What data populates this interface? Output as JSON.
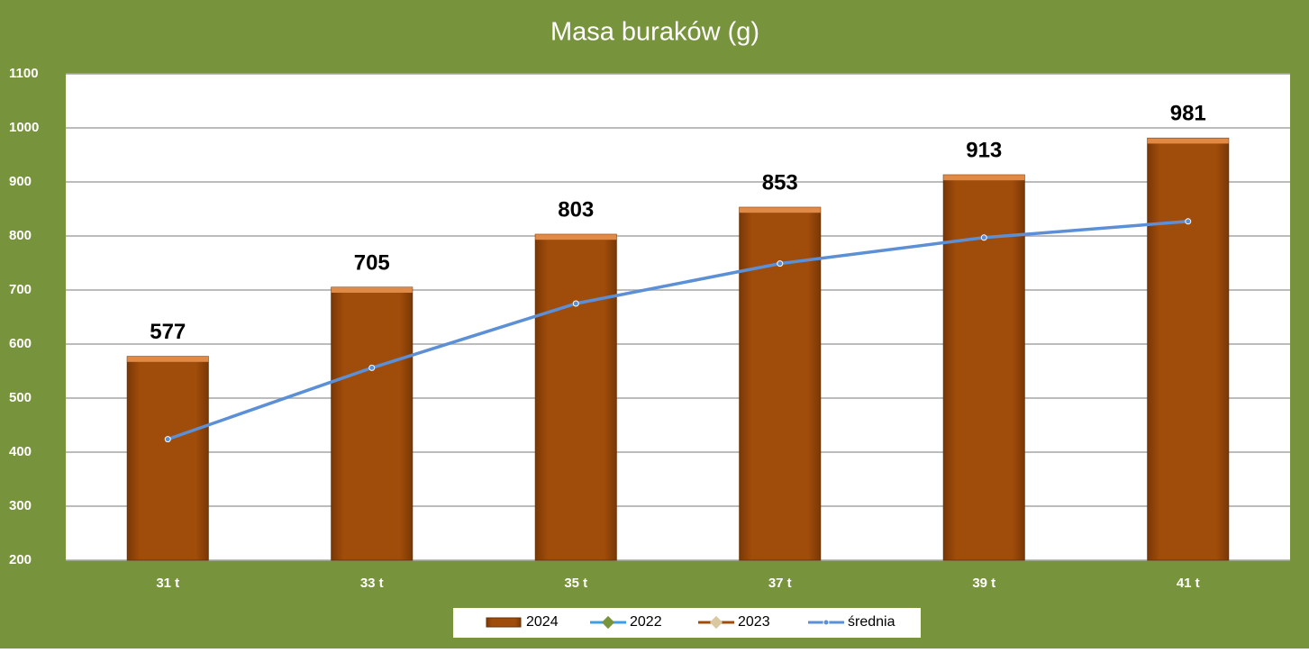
{
  "chart_data": {
    "type": "bar",
    "title": "Masa buraków (g)",
    "categories": [
      "31 t",
      "33 t",
      "35 t",
      "37 t",
      "39 t",
      "41 t"
    ],
    "series": [
      {
        "name": "2024",
        "type": "bar",
        "color": "#a04c0a",
        "values": [
          577,
          705,
          803,
          853,
          913,
          981
        ]
      },
      {
        "name": "2022",
        "type": "line",
        "color": "#3d9ee8",
        "marker_color": "#77933c",
        "values": [
          null,
          null,
          null,
          null,
          null,
          null
        ]
      },
      {
        "name": "2023",
        "type": "line",
        "color": "#a04c0a",
        "marker_color": "#d9c8a0",
        "values": [
          null,
          null,
          null,
          null,
          null,
          null
        ]
      },
      {
        "name": "średnia",
        "type": "line",
        "color": "#5b8fd6",
        "values": [
          424,
          556,
          675,
          749,
          797,
          827
        ]
      }
    ],
    "ylim": [
      200,
      1100
    ],
    "yticks": [
      200,
      300,
      400,
      500,
      600,
      700,
      800,
      900,
      1000,
      1100
    ],
    "grid": true,
    "legend": "bottom"
  }
}
